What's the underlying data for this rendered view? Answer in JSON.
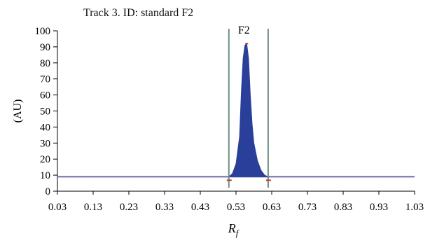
{
  "title": "Track 3. ID: standard F2",
  "chart_data": {
    "type": "line",
    "title": "Track 3. ID: standard F2",
    "xlabel": "R",
    "xlabel_subscript": "f",
    "ylabel": "(AU)",
    "xlim": [
      0.03,
      1.03
    ],
    "ylim": [
      0,
      100
    ],
    "x_ticks": [
      "0.03",
      "0.13",
      "0.23",
      "0.33",
      "0.43",
      "0.53",
      "0.63",
      "0.73",
      "0.83",
      "0.93",
      "1.03"
    ],
    "y_ticks": [
      "0",
      "10",
      "20",
      "30",
      "40",
      "50",
      "60",
      "70",
      "80",
      "90",
      "100"
    ],
    "baseline": 9,
    "peak_label": "F2",
    "peak": {
      "x": [
        0.51,
        0.52,
        0.53,
        0.54,
        0.545,
        0.55,
        0.555,
        0.56,
        0.565,
        0.57,
        0.575,
        0.58,
        0.59,
        0.6,
        0.61,
        0.62
      ],
      "y": [
        9,
        11,
        17,
        34,
        62,
        83,
        91,
        92,
        83,
        60,
        42,
        30,
        19,
        13,
        10,
        9
      ]
    },
    "integration_bounds": [
      0.51,
      0.62
    ],
    "colors": {
      "baseline": "#6a6aa6",
      "peak_fill": "#2a3f9a",
      "bounds": "#6e8f85",
      "markers": "#d03030"
    },
    "grid": false
  }
}
